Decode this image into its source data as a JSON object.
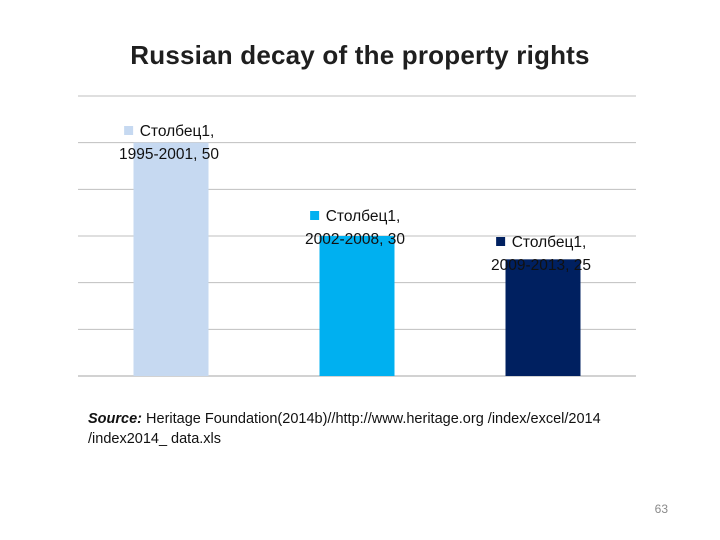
{
  "slide": {
    "title": "Russian decay of the property rights",
    "source_label": "Source:",
    "source_line1": " Heritage  Foundation(2014b)//http://www.heritage.org /index/excel/2014",
    "source_line2": "/index2014_ data.xls",
    "page_number": "63"
  },
  "chart_data": {
    "type": "bar",
    "title": "Russian decay of the property rights",
    "series_name": "Столбец1",
    "categories": [
      "1995-2001",
      "2002-2008",
      "2009-2013"
    ],
    "values": [
      50,
      30,
      25
    ],
    "data_labels": [
      {
        "line1": "Столбец1,",
        "line2": "1995-2001, 50"
      },
      {
        "line1": "Столбец1,",
        "line2": "2002-2008, 30"
      },
      {
        "line1": "Столбец1,",
        "line2": "2009-2013, 25"
      }
    ],
    "colors": [
      "#c6d9f1",
      "#00b0f0",
      "#002060"
    ],
    "ylim": [
      0,
      60
    ],
    "grid": true,
    "xlabel": "",
    "ylabel": ""
  }
}
